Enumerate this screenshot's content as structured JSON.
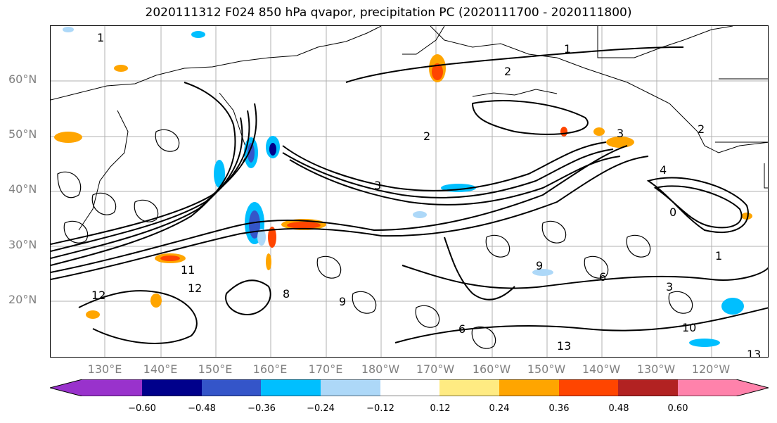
{
  "title": "2020111312 F024 850 hPa qvapor, precipitation PC (2020111700 - 2020111800)",
  "map": {
    "lat_labels": [
      "60°N",
      "50°N",
      "40°N",
      "30°N",
      "20°N"
    ],
    "lon_labels": [
      "130°E",
      "140°E",
      "150°E",
      "160°E",
      "170°E",
      "180°W",
      "170°W",
      "160°W",
      "150°W",
      "140°W",
      "130°W",
      "120°W"
    ],
    "contour_labels": [
      "1",
      "1",
      "2",
      "2",
      "3",
      "3",
      "4",
      "6",
      "8",
      "9",
      "10",
      "11",
      "12",
      "12",
      "13",
      "13",
      "0",
      "1",
      "2",
      "6",
      "9",
      "3"
    ]
  },
  "colorbar": {
    "colors": [
      "#9932CC",
      "#00008B",
      "#3455C9",
      "#00BFFF",
      "#ADD8F8",
      "#FFFFFF",
      "#FFEB82",
      "#FFA500",
      "#FF4500",
      "#B22222",
      "#FF82AB"
    ],
    "ticks": [
      "−0.60",
      "−0.48",
      "−0.36",
      "−0.24",
      "−0.12",
      "0.12",
      "0.24",
      "0.36",
      "0.48",
      "0.60"
    ]
  }
}
